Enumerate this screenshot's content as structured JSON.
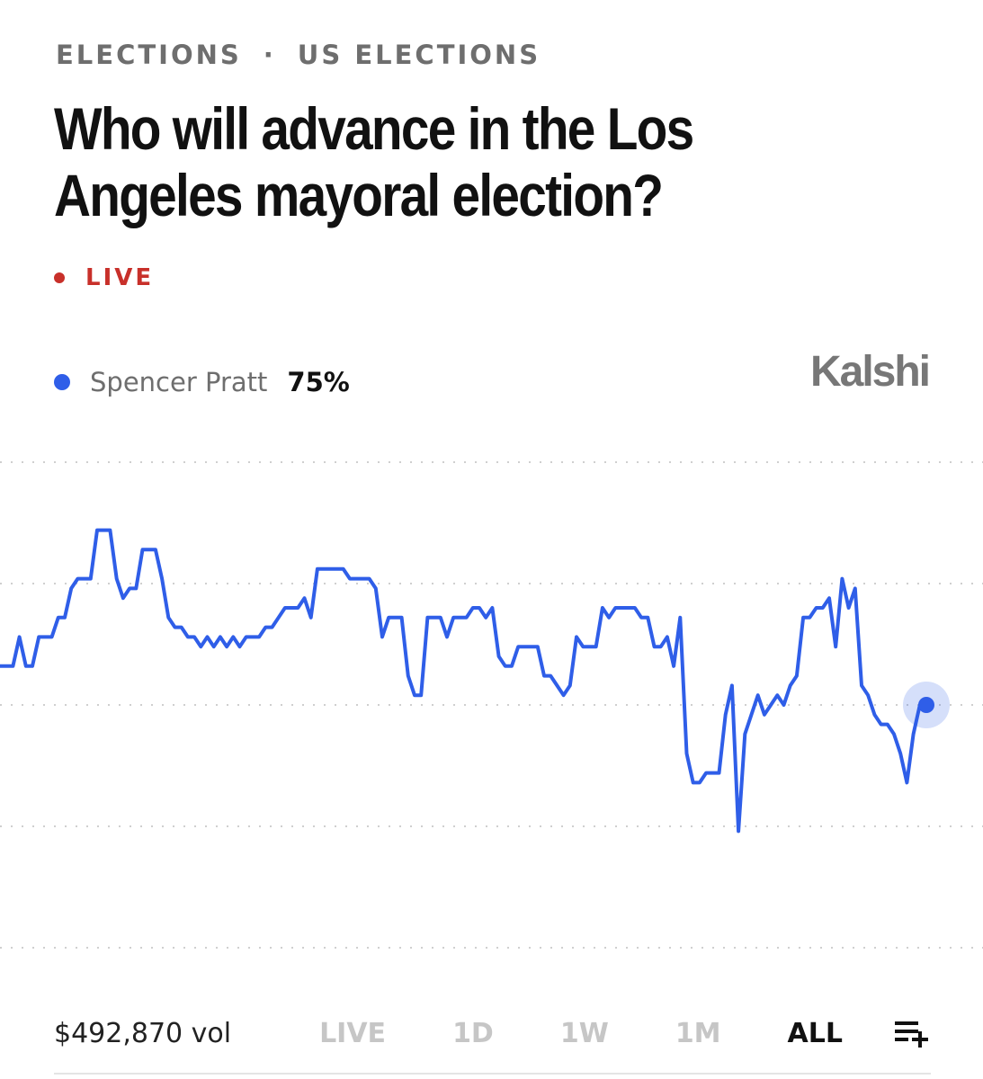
{
  "breadcrumb": {
    "section": "ELECTIONS",
    "separator": "·",
    "subsection": "US ELECTIONS"
  },
  "title": "Who will advance in the Los Angeles mayoral election?",
  "live_label": "LIVE",
  "brand": "Kalshi",
  "legend": {
    "name": "Spencer Pratt",
    "value": "75%",
    "color": "#2f5ee8"
  },
  "footer": {
    "volume": "$492,870 vol",
    "ranges": [
      "LIVE",
      "1D",
      "1W",
      "1M",
      "ALL"
    ],
    "active_range": "ALL"
  },
  "colors": {
    "accent": "#2f5ee8",
    "live": "#c8302a",
    "grid": "#cfcfcf"
  },
  "icons": {
    "add_list": "list-add-icon"
  },
  "chart_data": {
    "type": "line",
    "title": "",
    "xlabel": "",
    "ylabel": "",
    "ylim": [
      50,
      100
    ],
    "grid": true,
    "legend_position": "top-left",
    "series": [
      {
        "name": "Spencer Pratt",
        "values": [
          79,
          79,
          79,
          82,
          79,
          79,
          82,
          82,
          82,
          84,
          84,
          87,
          88,
          88,
          88,
          93,
          93,
          93,
          88,
          86,
          87,
          87,
          91,
          91,
          91,
          88,
          84,
          83,
          83,
          82,
          82,
          81,
          82,
          81,
          82,
          81,
          82,
          81,
          82,
          82,
          82,
          83,
          83,
          84,
          85,
          85,
          85,
          86,
          84,
          89,
          89,
          89,
          89,
          89,
          88,
          88,
          88,
          88,
          87,
          82,
          84,
          84,
          84,
          78,
          76,
          76,
          84,
          84,
          84,
          82,
          84,
          84,
          84,
          85,
          85,
          84,
          85,
          80,
          79,
          79,
          81,
          81,
          81,
          81,
          78,
          78,
          77,
          76,
          77,
          82,
          81,
          81,
          81,
          85,
          84,
          85,
          85,
          85,
          85,
          84,
          84,
          81,
          81,
          82,
          79,
          84,
          70,
          67,
          67,
          68,
          68,
          68,
          74,
          77,
          62,
          72,
          74,
          76,
          74,
          75,
          76,
          75,
          77,
          78,
          84,
          84,
          85,
          85,
          86,
          81,
          88,
          85,
          87,
          77,
          76,
          74,
          73,
          73,
          72,
          70,
          67,
          72,
          75,
          75
        ]
      }
    ],
    "last_value": "75%"
  }
}
